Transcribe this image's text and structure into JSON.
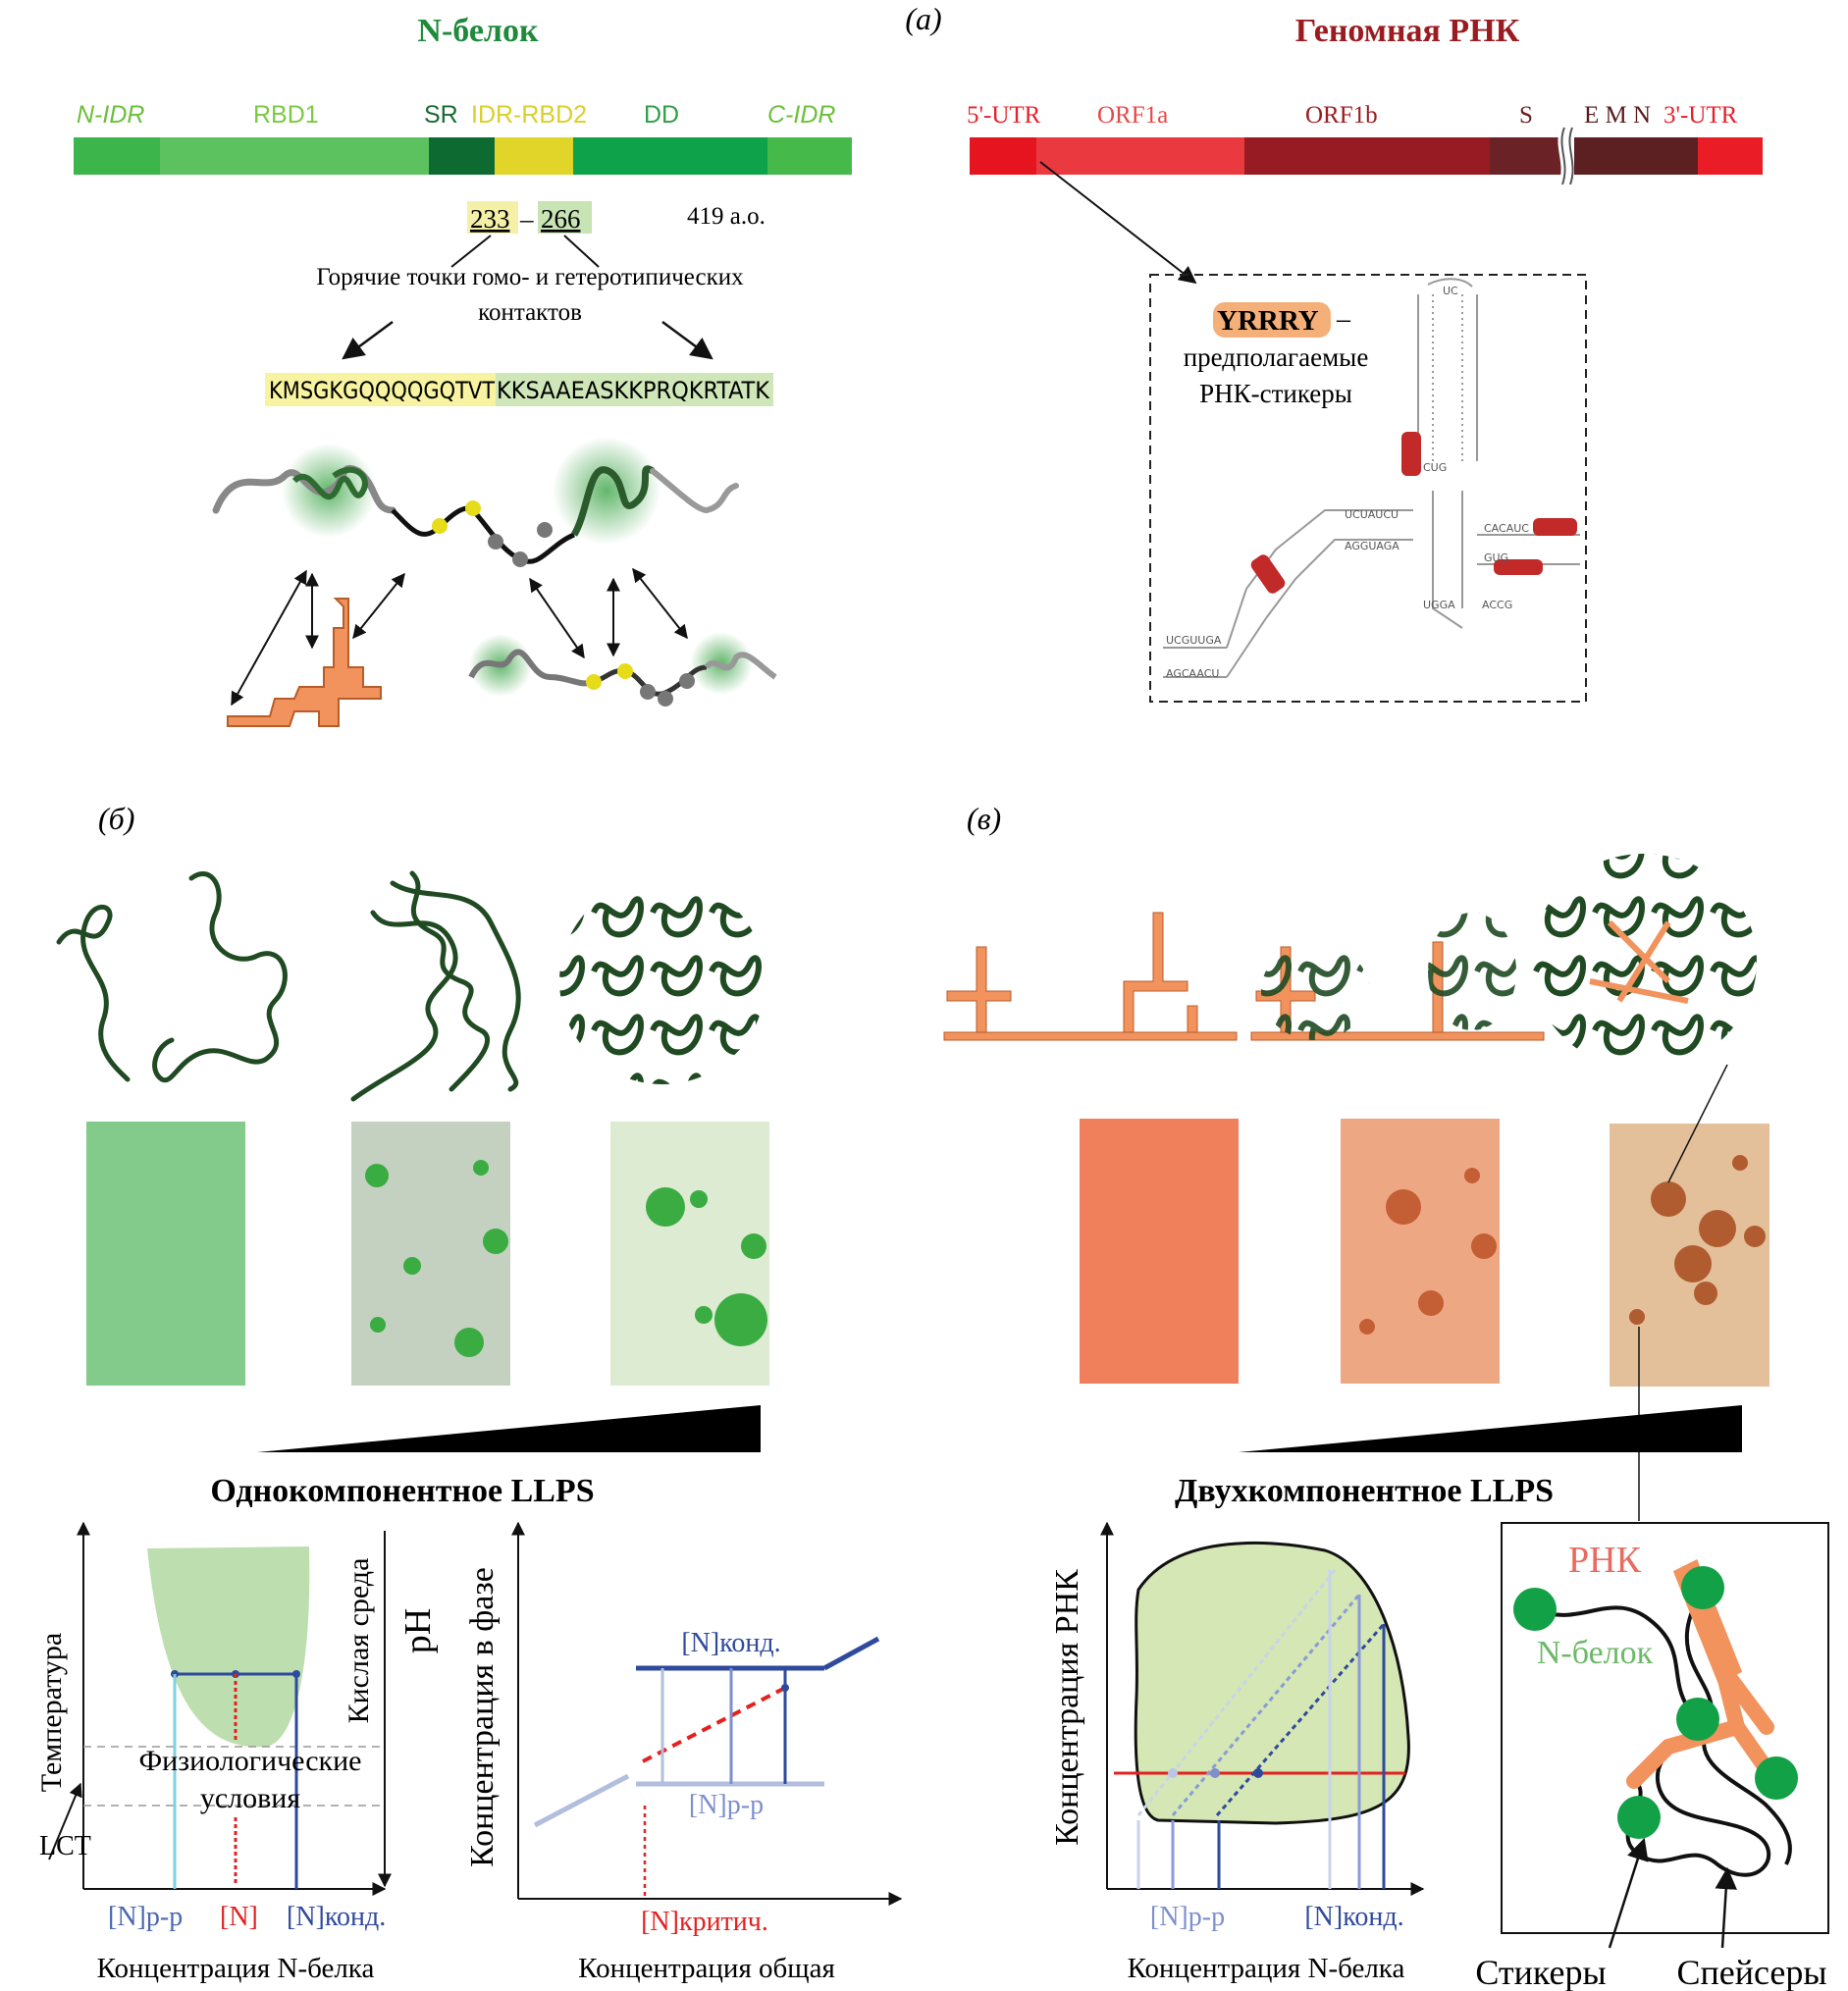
{
  "panel_a": {
    "label": "(а)",
    "protein": {
      "title": "N-белок",
      "domains": [
        "N-IDR",
        "RBD1",
        "SR",
        "IDR-RBD2",
        "DD",
        "C-IDR"
      ],
      "residue_start": "233",
      "residue_dash": "–",
      "residue_end": "266",
      "length": "419 а.о.",
      "hotspot_line1": "Горячие точки гомо- и гетеротипических",
      "hotspot_line2": "контактов",
      "sequence_yellow": "KMSGKGQQQQGQTVT",
      "sequence_green": "KKSAAEASKKPRQKRTATK"
    },
    "rna": {
      "title": "Геномная РНК",
      "segments": [
        "5'-UTR",
        "ORF1a",
        "ORF1b",
        "S",
        "E M N",
        "3'-UTR"
      ],
      "motif": "YRRRY",
      "motif_dash": "–",
      "motif_line1": "предполагаемые",
      "motif_line2": "РНК-стикеры"
    }
  },
  "panel_b": {
    "label": "(б)",
    "title": "Однокомпонентное LLPS",
    "phase_diagram": {
      "y_label": "Температура",
      "right_label_acid": "Кислая среда",
      "right_label_ph": "pH",
      "physio_line1": "Физиологические",
      "physio_line2": "условия",
      "lct": "LCT",
      "x_label": "Концентрация N-белка",
      "tick_pp": "[N]р-р",
      "tick_n": "[N]",
      "tick_cond": "[N]конд."
    },
    "conc_plot": {
      "y_label": "Концентрация в фазе",
      "x_label": "Концентрация общая",
      "label_cond": "[N]конд.",
      "label_pp": "[N]р-р",
      "label_crit": "[N]критич."
    }
  },
  "panel_c": {
    "label": "(в)",
    "title": "Двухкомпонентное LLPS",
    "phase_diagram": {
      "y_label": "Концентрация РНК",
      "x_label": "Концентрация N-белка",
      "tick_pp": "[N]р-р",
      "tick_cond": "[N]конд."
    },
    "inset": {
      "rna_label": "РНК",
      "protein_label": "N-белок",
      "stickers": "Стикеры",
      "spacers": "Спейсеры"
    }
  },
  "colors": {
    "green_dark": "#1f4a22",
    "green_bar": "#3cb54a",
    "rna_red": "#e8202a",
    "orange": "#f2925c",
    "blue": "#2f4a9c"
  }
}
